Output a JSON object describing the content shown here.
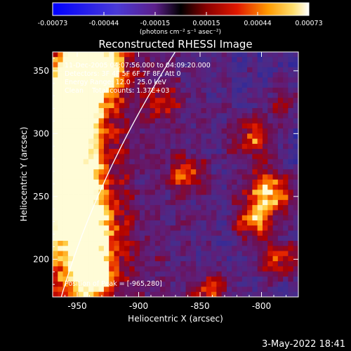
{
  "colorbar": {
    "tick_labels": [
      "-0.00073",
      "-0.00044",
      "-0.00015",
      "0.00015",
      "0.00044",
      "0.00073"
    ],
    "unit_label": "(photons cm⁻² s⁻¹ asec⁻²)",
    "range": [
      -0.00073,
      0.00073
    ]
  },
  "chart_data": {
    "type": "heatmap",
    "title": "Reconstructed RHESSI Image",
    "xlabel": "Heliocentric X (arcsec)",
    "ylabel": "Heliocentric Y (arcsec)",
    "xlim": [
      -970,
      -770
    ],
    "ylim": [
      170,
      365
    ],
    "xticks": [
      -950,
      -900,
      -850,
      -800
    ],
    "yticks": [
      200,
      250,
      300,
      350
    ],
    "xtick_labels": [
      "-950",
      "-900",
      "-850",
      "-800"
    ],
    "ytick_labels": [
      "200",
      "250",
      "300",
      "350"
    ],
    "annotations": [
      "11-Dec-2005 04:07:56.000 to 04:09:20.000",
      "Detectors: 3F 4F 5F 6F 7F 8F, Att 0",
      "Energy Range: 12.0 - 25.0 keV",
      "Clean    Total counts: 1.37E+03"
    ],
    "peak_label": "Position of Peak = [-965,280]",
    "peak_position": [
      -965,
      280
    ],
    "limb_visible": true
  },
  "footer": {
    "timestamp": "3-May-2022 18:41"
  }
}
